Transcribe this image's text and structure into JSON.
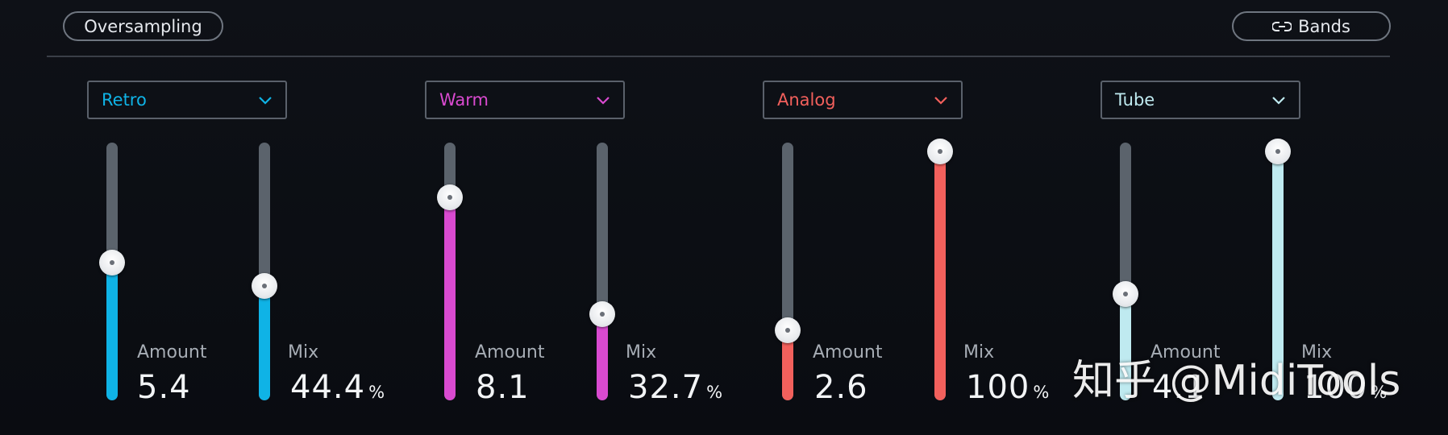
{
  "header": {
    "oversampling_label": "Oversampling",
    "bands_label": "Bands",
    "bands_icon": "link-icon"
  },
  "modules": [
    {
      "preset": "Retro",
      "accent": "#0fb3e6",
      "amount": {
        "label": "Amount",
        "value": "5.4",
        "level": 0.54
      },
      "mix": {
        "label": "Mix",
        "value": "44.4",
        "unit": "%",
        "level": 0.444
      }
    },
    {
      "preset": "Warm",
      "accent": "#d94ad0",
      "amount": {
        "label": "Amount",
        "value": "8.1",
        "level": 0.81
      },
      "mix": {
        "label": "Mix",
        "value": "32.7",
        "unit": "%",
        "level": 0.327
      }
    },
    {
      "preset": "Analog",
      "accent": "#f2605c",
      "amount": {
        "label": "Amount",
        "value": "2.6",
        "level": 0.26
      },
      "mix": {
        "label": "Mix",
        "value": "100",
        "unit": "%",
        "level": 1.0
      }
    },
    {
      "preset": "Tube",
      "accent": "#bfeaf0",
      "amount": {
        "label": "Amount",
        "value": "4.1",
        "level": 0.41
      },
      "mix": {
        "label": "Mix",
        "value": "100",
        "unit": "%",
        "level": 1.0
      }
    }
  ],
  "watermark": "知乎 @MidiTools"
}
